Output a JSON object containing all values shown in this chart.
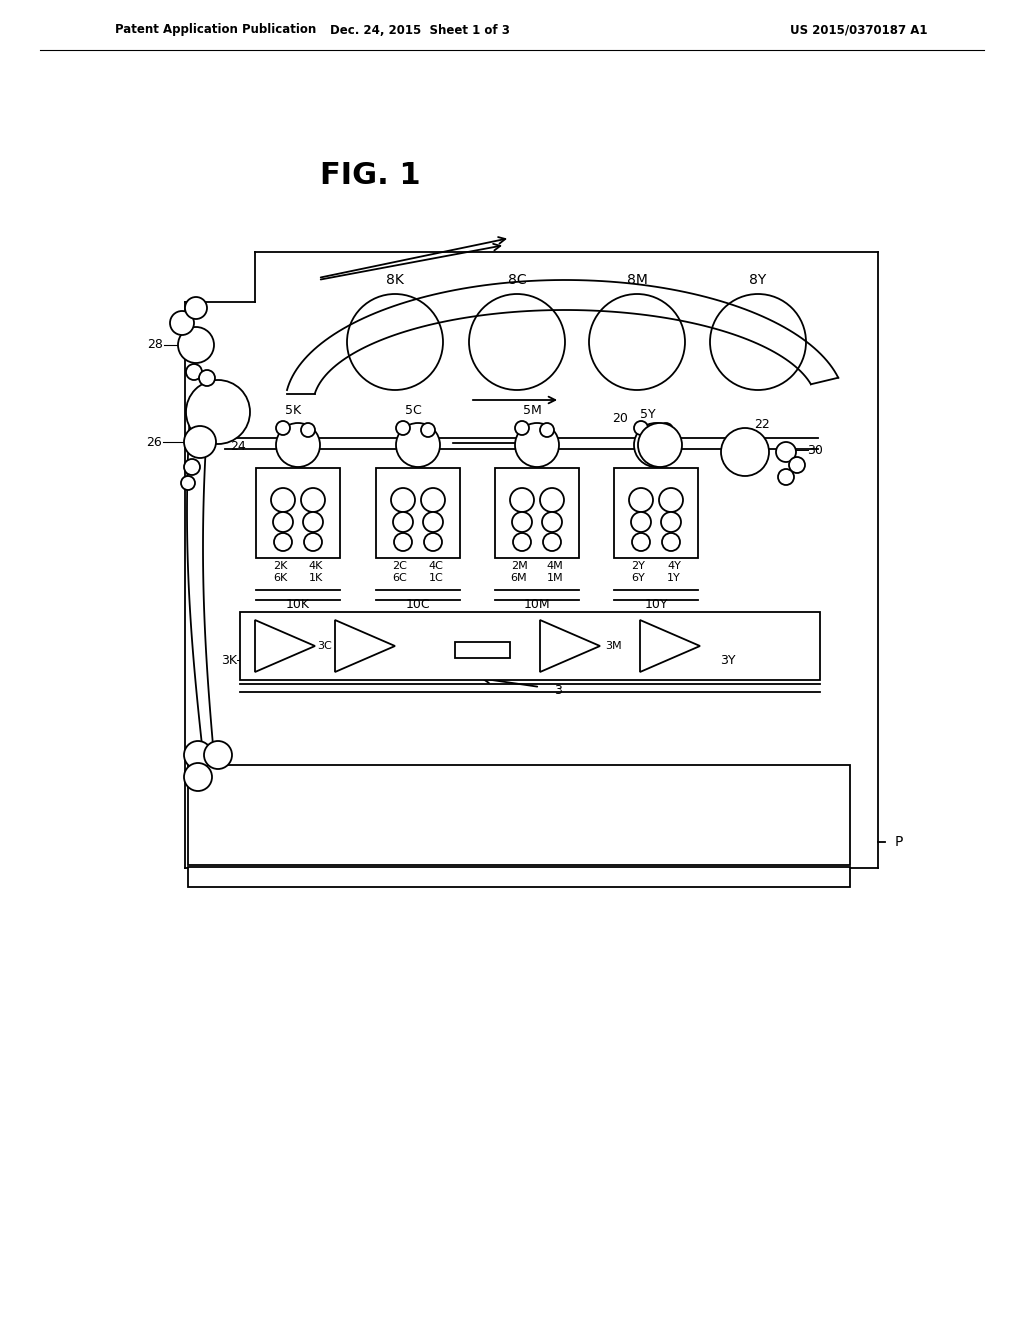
{
  "bg_color": "#ffffff",
  "lc": "#000000",
  "header_left": "Patent Application Publication",
  "header_mid": "Dec. 24, 2015  Sheet 1 of 3",
  "header_right": "US 2015/0370187 A1",
  "fig_label": "FIG. 1",
  "toner_labels": [
    "8K",
    "8C",
    "8M",
    "8Y"
  ],
  "dev_labels": [
    "5K",
    "5C",
    "5M"
  ],
  "exp_labels": [
    "10K",
    "10C",
    "10M",
    "10Y"
  ],
  "laser_labels": [
    "3K",
    "3C",
    "3M",
    "3Y"
  ]
}
